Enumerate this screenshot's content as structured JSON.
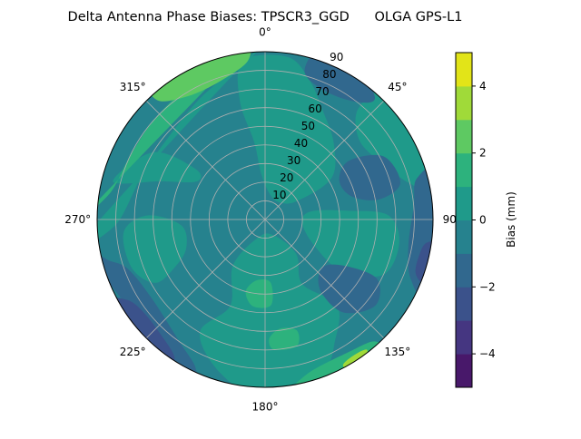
{
  "chart_data": {
    "type": "polar-contour",
    "title": "Delta Antenna Phase Biases: TPSCR3_GGD      OLGA GPS-L1",
    "theta_direction": "clockwise",
    "theta_zero": "north",
    "theta_ticks": [
      "0°",
      "45°",
      "90°",
      "135°",
      "180°",
      "225°",
      "270°",
      "315°"
    ],
    "theta_tick_values": [
      0,
      45,
      90,
      135,
      180,
      225,
      270,
      315
    ],
    "r_ticks": [
      "10",
      "20",
      "30",
      "40",
      "50",
      "60",
      "70",
      "80",
      "90"
    ],
    "r_tick_values": [
      10,
      20,
      30,
      40,
      50,
      60,
      70,
      80,
      90
    ],
    "rlim": [
      0,
      90
    ],
    "grid": true,
    "colorbar": {
      "label": "Bias (mm)",
      "range": [
        -5,
        5
      ],
      "levels": [
        -5,
        -4,
        -3,
        -2,
        -1,
        0,
        1,
        2,
        3,
        4,
        5
      ],
      "ticks": [
        "−4",
        "−2",
        "0",
        "2",
        "4"
      ],
      "tick_values": [
        -4,
        -2,
        0,
        2,
        4
      ],
      "colormap": "viridis",
      "band_colors": [
        "#48186a",
        "#453681",
        "#3b528b",
        "#31688e",
        "#26828e",
        "#1f9a8a",
        "#2db27d",
        "#5ec962",
        "#a0da39",
        "#e2e418"
      ]
    },
    "base_level": -1,
    "regions": [
      {
        "level": 0,
        "polygon": [
          [
            355,
            25
          ],
          [
            10,
            14
          ],
          [
            40,
            12
          ],
          [
            60,
            20
          ],
          [
            58,
            42
          ],
          [
            42,
            55
          ],
          [
            28,
            66
          ],
          [
            18,
            78
          ],
          [
            8,
            88
          ],
          [
            352,
            86
          ],
          [
            348,
            65
          ],
          [
            352,
            42
          ]
        ]
      },
      {
        "level": 0,
        "polygon": [
          [
            40,
            78
          ],
          [
            50,
            66
          ],
          [
            65,
            70
          ],
          [
            76,
            80
          ],
          [
            82,
            90
          ],
          [
            45,
            90
          ]
        ]
      },
      {
        "level": 0,
        "polygon": [
          [
            80,
            25
          ],
          [
            95,
            20
          ],
          [
            118,
            30
          ],
          [
            124,
            50
          ],
          [
            115,
            70
          ],
          [
            100,
            73
          ],
          [
            88,
            66
          ],
          [
            84,
            45
          ]
        ]
      },
      {
        "level": 0,
        "polygon": [
          [
            150,
            10
          ],
          [
            200,
            10
          ],
          [
            215,
            30
          ],
          [
            202,
            50
          ],
          [
            210,
            70
          ],
          [
            196,
            86
          ],
          [
            180,
            90
          ],
          [
            160,
            88
          ],
          [
            150,
            75
          ],
          [
            140,
            60
          ],
          [
            150,
            40
          ],
          [
            138,
            25
          ]
        ]
      },
      {
        "level": 0,
        "polygon": [
          [
            242,
            55
          ],
          [
            250,
            45
          ],
          [
            266,
            45
          ],
          [
            272,
            63
          ],
          [
            265,
            76
          ],
          [
            250,
            76
          ],
          [
            240,
            68
          ]
        ]
      },
      {
        "level": 0,
        "polygon": [
          [
            265,
            90
          ],
          [
            268,
            80
          ],
          [
            290,
            70
          ],
          [
            310,
            68
          ],
          [
            330,
            73
          ],
          [
            345,
            80
          ],
          [
            355,
            87
          ],
          [
            360,
            90
          ]
        ]
      },
      {
        "level": 0,
        "polygon": [
          [
            284,
            84
          ],
          [
            290,
            60
          ],
          [
            299,
            42
          ],
          [
            306,
            46
          ],
          [
            301,
            70
          ]
        ]
      },
      {
        "level": 1,
        "polygon": [
          [
            272,
            90
          ],
          [
            280,
            84
          ],
          [
            295,
            80
          ],
          [
            312,
            80
          ],
          [
            330,
            82
          ],
          [
            350,
            87
          ],
          [
            356,
            90
          ]
        ]
      },
      {
        "level": 1,
        "polygon": [
          [
            175,
            34
          ],
          [
            188,
            33
          ],
          [
            195,
            40
          ],
          [
            188,
            47
          ],
          [
            176,
            46
          ]
        ]
      },
      {
        "level": 1,
        "polygon": [
          [
            164,
            62
          ],
          [
            172,
            59
          ],
          [
            178,
            64
          ],
          [
            176,
            70
          ],
          [
            166,
            70
          ]
        ]
      },
      {
        "level": 1,
        "polygon": [
          [
            138,
            88
          ],
          [
            148,
            84
          ],
          [
            165,
            86
          ],
          [
            172,
            90
          ],
          [
            140,
            90
          ]
        ]
      },
      {
        "level": 2,
        "polygon": [
          [
            318,
            86
          ],
          [
            328,
            78
          ],
          [
            342,
            78
          ],
          [
            354,
            86
          ],
          [
            352,
            90
          ],
          [
            322,
            90
          ]
        ]
      },
      {
        "level": 3,
        "polygon": [
          [
            142,
            89
          ],
          [
            147,
            87
          ],
          [
            152,
            89
          ],
          [
            148,
            90
          ]
        ]
      },
      {
        "level": -2,
        "polygon": [
          [
            55,
            55
          ],
          [
            62,
            45
          ],
          [
            75,
            48
          ],
          [
            80,
            62
          ],
          [
            75,
            75
          ],
          [
            62,
            72
          ]
        ]
      },
      {
        "level": -2,
        "polygon": [
          [
            75,
            84
          ],
          [
            85,
            80
          ],
          [
            100,
            78
          ],
          [
            112,
            84
          ],
          [
            115,
            90
          ],
          [
            75,
            90
          ]
        ]
      },
      {
        "level": -2,
        "polygon": [
          [
            120,
            50
          ],
          [
            130,
            40
          ],
          [
            142,
            48
          ],
          [
            140,
            65
          ],
          [
            128,
            75
          ],
          [
            118,
            68
          ]
        ]
      },
      {
        "level": -2,
        "polygon": [
          [
            205,
            88
          ],
          [
            215,
            80
          ],
          [
            235,
            74
          ],
          [
            250,
            78
          ],
          [
            255,
            86
          ],
          [
            258,
            90
          ],
          [
            205,
            90
          ]
        ]
      },
      {
        "level": -2,
        "polygon": [
          [
            15,
            82
          ],
          [
            25,
            76
          ],
          [
            38,
            80
          ],
          [
            42,
            88
          ],
          [
            30,
            90
          ],
          [
            18,
            90
          ]
        ]
      },
      {
        "level": -3,
        "polygon": [
          [
            98,
            88
          ],
          [
            102,
            85
          ],
          [
            110,
            86
          ],
          [
            112,
            90
          ],
          [
            98,
            90
          ]
        ]
      },
      {
        "level": -3,
        "polygon": [
          [
            213,
            89
          ],
          [
            220,
            84
          ],
          [
            233,
            82
          ],
          [
            240,
            86
          ],
          [
            242,
            90
          ],
          [
            214,
            90
          ]
        ]
      }
    ]
  }
}
